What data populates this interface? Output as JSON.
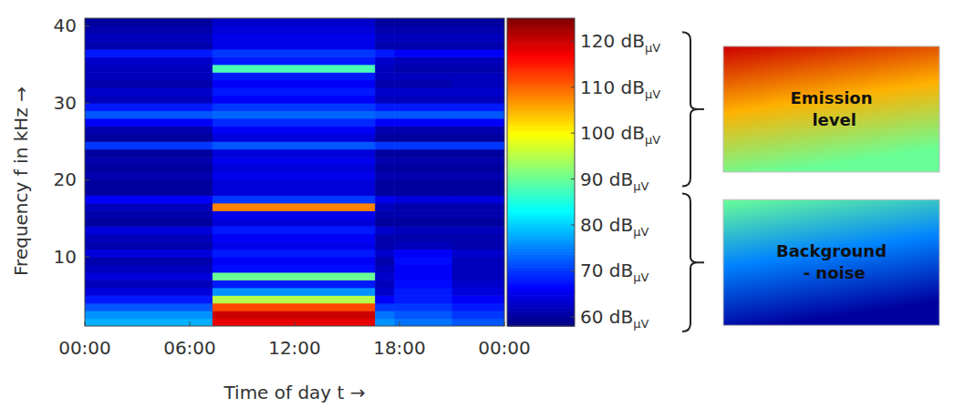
{
  "chart_data": {
    "type": "heatmap",
    "x_label": "Time of day t →",
    "y_label": "Frequency f in kHz →",
    "xlim": [
      0,
      24
    ],
    "xticks": [
      {
        "value": 0,
        "label": "00:00"
      },
      {
        "value": 6,
        "label": "06:00"
      },
      {
        "value": 12,
        "label": "12:00"
      },
      {
        "value": 18,
        "label": "18:00"
      },
      {
        "value": 24,
        "label": "00:00"
      }
    ],
    "ylim": [
      1,
      41
    ],
    "yticks": [
      10,
      20,
      30,
      40
    ],
    "x_edges": [
      0,
      7.3,
      16.6,
      17.7,
      21,
      24
    ],
    "y_edges": [
      1,
      2,
      3,
      4,
      5,
      6,
      7,
      8,
      9,
      10,
      11,
      12,
      13,
      14,
      15,
      16,
      17,
      18,
      19,
      20,
      21,
      22,
      23,
      24,
      25,
      26,
      27,
      28,
      29,
      30,
      31,
      32,
      33,
      34,
      35,
      36,
      37,
      38,
      39,
      40,
      41
    ],
    "cells": [
      [
        78,
        118,
        76,
        74,
        72
      ],
      [
        76,
        120,
        74,
        72,
        70
      ],
      [
        72,
        112,
        70,
        70,
        68
      ],
      [
        68,
        95,
        66,
        68,
        66
      ],
      [
        64,
        76,
        63,
        68,
        64
      ],
      [
        62,
        68,
        62,
        67,
        63
      ],
      [
        64,
        90,
        63,
        66,
        62
      ],
      [
        62,
        67,
        62,
        66,
        62
      ],
      [
        61,
        66,
        61,
        67,
        62
      ],
      [
        64,
        68,
        63,
        66,
        63
      ],
      [
        61,
        65,
        61,
        62,
        61
      ],
      [
        62,
        66,
        61,
        61,
        61
      ],
      [
        64,
        68,
        63,
        62,
        62
      ],
      [
        60,
        64,
        60,
        60,
        60
      ],
      [
        61,
        65,
        61,
        61,
        61
      ],
      [
        62,
        108,
        62,
        61,
        61
      ],
      [
        66,
        70,
        65,
        64,
        64
      ],
      [
        60,
        64,
        60,
        60,
        60
      ],
      [
        60,
        64,
        60,
        60,
        60
      ],
      [
        61,
        65,
        61,
        61,
        61
      ],
      [
        60,
        64,
        60,
        60,
        60
      ],
      [
        61,
        65,
        61,
        61,
        61
      ],
      [
        60,
        64,
        60,
        60,
        60
      ],
      [
        70,
        72,
        70,
        70,
        70
      ],
      [
        60,
        64,
        60,
        60,
        60
      ],
      [
        61,
        66,
        61,
        61,
        61
      ],
      [
        66,
        69,
        66,
        66,
        66
      ],
      [
        72,
        73,
        72,
        72,
        72
      ],
      [
        68,
        70,
        68,
        68,
        68
      ],
      [
        62,
        66,
        62,
        62,
        62
      ],
      [
        63,
        68,
        63,
        63,
        63
      ],
      [
        61,
        66,
        61,
        61,
        62
      ],
      [
        62,
        68,
        62,
        62,
        62
      ],
      [
        62,
        88,
        62,
        61,
        61
      ],
      [
        63,
        68,
        63,
        62,
        62
      ],
      [
        68,
        70,
        68,
        66,
        66
      ],
      [
        61,
        65,
        61,
        61,
        61
      ],
      [
        62,
        65,
        62,
        62,
        62
      ],
      [
        61,
        64,
        61,
        61,
        61
      ],
      [
        60,
        63,
        60,
        60,
        60
      ]
    ],
    "colorbar": {
      "range": [
        58,
        125
      ],
      "ticks": [
        {
          "value": 120,
          "label": "120 dBμV"
        },
        {
          "value": 110,
          "label": "110 dBμV"
        },
        {
          "value": 100,
          "label": "100 dBμV"
        },
        {
          "value": 90,
          "label": "90 dBμV"
        },
        {
          "value": 80,
          "label": "80 dBμV"
        },
        {
          "value": 70,
          "label": "70 dBμV"
        },
        {
          "value": 60,
          "label": "60 dBμV"
        }
      ]
    },
    "annotations": [
      {
        "text": "Emission level",
        "range": [
          90,
          120
        ]
      },
      {
        "text": "Background - noise",
        "range": [
          60,
          90
        ]
      }
    ]
  }
}
